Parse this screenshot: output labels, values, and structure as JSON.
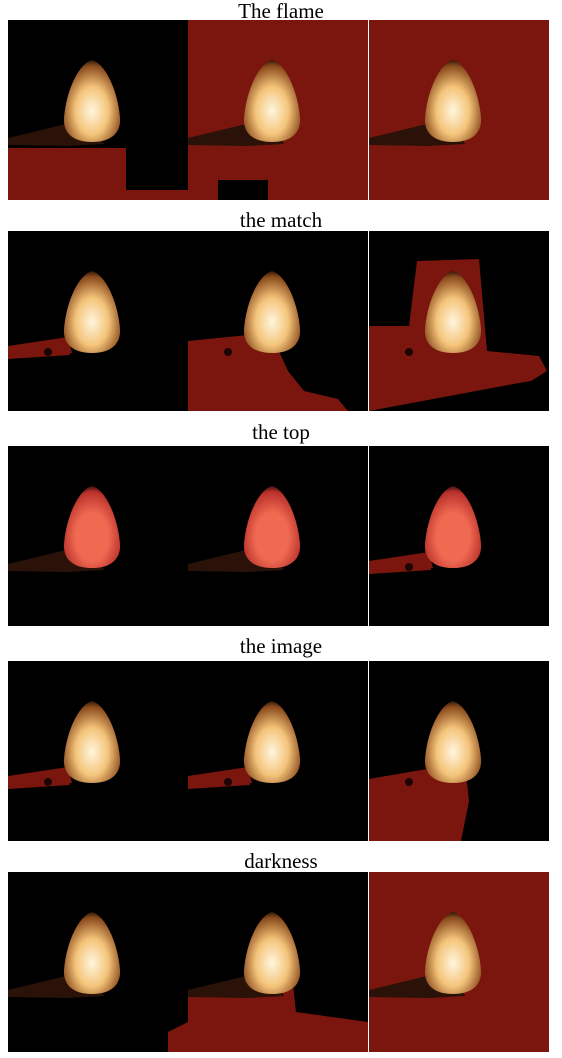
{
  "rows": [
    {
      "caption": "The flame",
      "panels": [
        {
          "mask": "bottom-left",
          "flame": "bright",
          "match": "bar"
        },
        {
          "mask": "full-except-bottom-band",
          "flame": "bright",
          "match": "bar"
        },
        {
          "mask": "full",
          "flame": "bright",
          "match": "bar"
        }
      ]
    },
    {
      "caption": "the match",
      "panels": [
        {
          "mask": "match-strip",
          "flame": "bright",
          "match": "red-strip"
        },
        {
          "mask": "bottom-right-partial",
          "flame": "bright",
          "match": "red-strip"
        },
        {
          "mask": "large-block",
          "flame": "bright",
          "match": "red-strip"
        }
      ]
    },
    {
      "caption": "the top",
      "panels": [
        {
          "mask": "none",
          "flame": "red",
          "match": "bar"
        },
        {
          "mask": "none",
          "flame": "red",
          "match": "bar"
        },
        {
          "mask": "match-strip",
          "flame": "red",
          "match": "red-strip"
        }
      ]
    },
    {
      "caption": "the image",
      "panels": [
        {
          "mask": "match-strip",
          "flame": "bright",
          "match": "red-strip"
        },
        {
          "mask": "match-strip",
          "flame": "bright",
          "match": "red-strip"
        },
        {
          "mask": "large-block-bottom",
          "flame": "bright",
          "match": "red-strip"
        }
      ]
    },
    {
      "caption": "darkness",
      "panels": [
        {
          "mask": "corner",
          "flame": "bright",
          "match": "bar"
        },
        {
          "mask": "bottom-band",
          "flame": "bright",
          "match": "bar"
        },
        {
          "mask": "full",
          "flame": "bright",
          "match": "bar"
        }
      ]
    }
  ],
  "colors": {
    "background": "#000000",
    "mask_red": "#7a160e",
    "flame_core": "#fff6df",
    "flame_mid": "#f4c47a",
    "flame_edge": "#8a4a1c",
    "red_flame_core": "#f06a52",
    "red_flame_edge": "#b8302a"
  }
}
